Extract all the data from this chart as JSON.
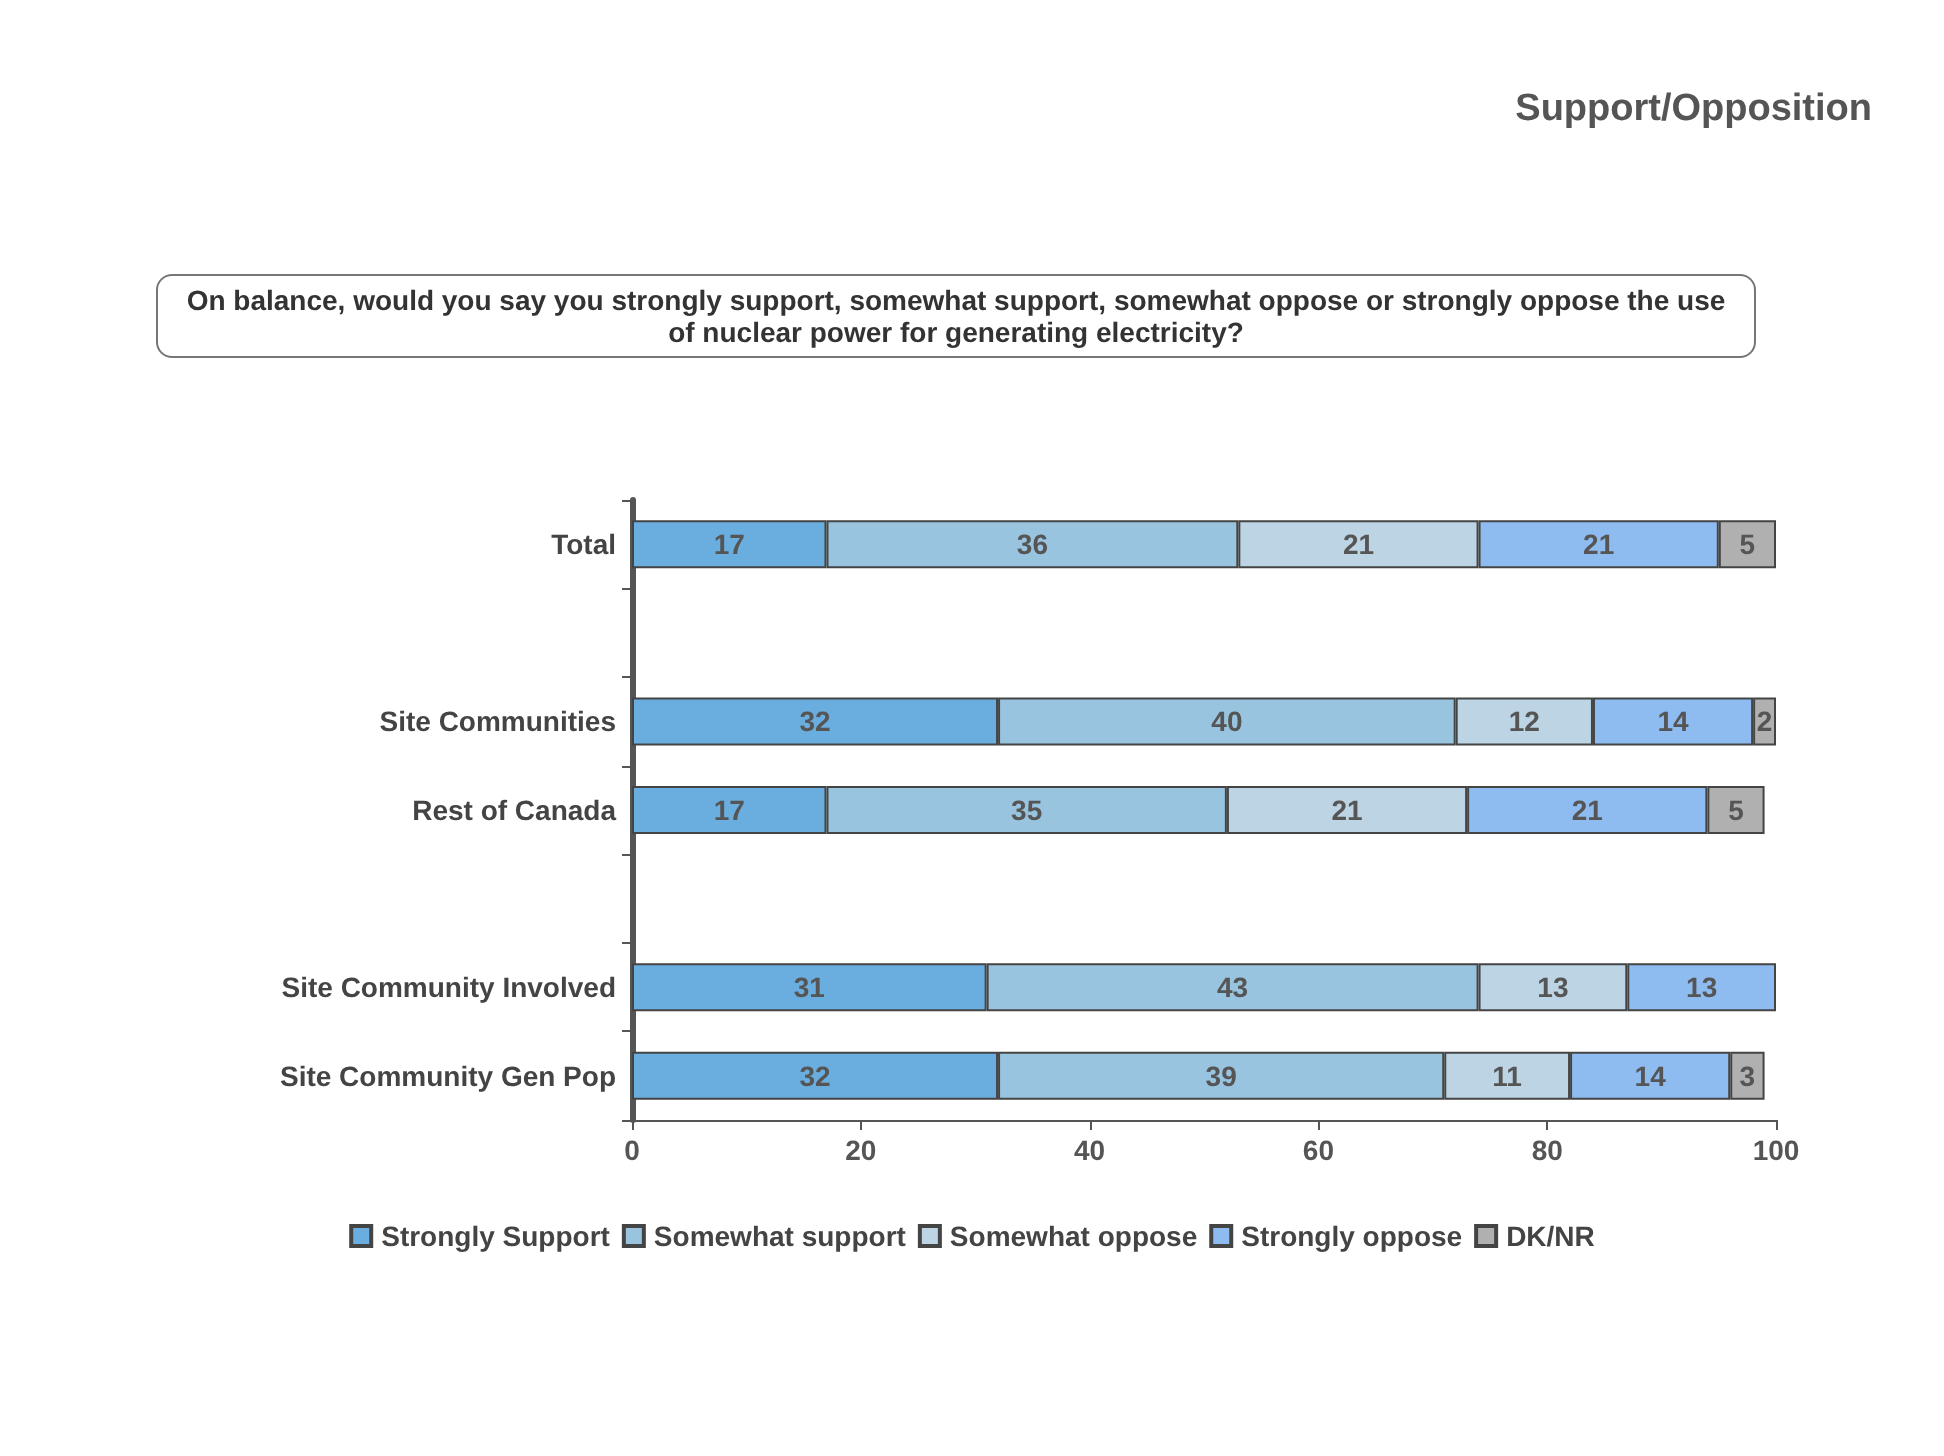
{
  "chart_data": {
    "type": "bar",
    "orientation": "horizontal",
    "stacked": true,
    "title": "Support/Opposition",
    "subtitle": "On balance, would you say you strongly support, somewhat support, somewhat oppose or strongly oppose the use of nuclear power for generating electricity?",
    "categories": [
      "Total",
      null,
      "Site Communities",
      "Rest of Canada",
      null,
      "Site Community Involved",
      "Site Community Gen Pop"
    ],
    "series": [
      {
        "name": "Strongly Support",
        "color": "#6aaee0",
        "values": [
          17,
          null,
          32,
          17,
          null,
          31,
          32
        ]
      },
      {
        "name": "Somewhat support",
        "color": "#98c4e0",
        "values": [
          36,
          null,
          40,
          35,
          null,
          43,
          39
        ]
      },
      {
        "name": "Somewhat oppose",
        "color": "#bcd4e4",
        "values": [
          21,
          null,
          12,
          21,
          null,
          13,
          11
        ]
      },
      {
        "name": "Strongly oppose",
        "color": "#8ebcf0",
        "values": [
          21,
          null,
          14,
          21,
          null,
          13,
          14
        ]
      },
      {
        "name": "DK/NR",
        "color": "#b0b0b0",
        "values": [
          5,
          null,
          2,
          5,
          null,
          null,
          3
        ]
      }
    ],
    "xlim": [
      0,
      100
    ],
    "xticks": [
      0,
      20,
      40,
      60,
      80,
      100
    ],
    "grid": false,
    "legend": "bottom",
    "data_labels": true
  }
}
